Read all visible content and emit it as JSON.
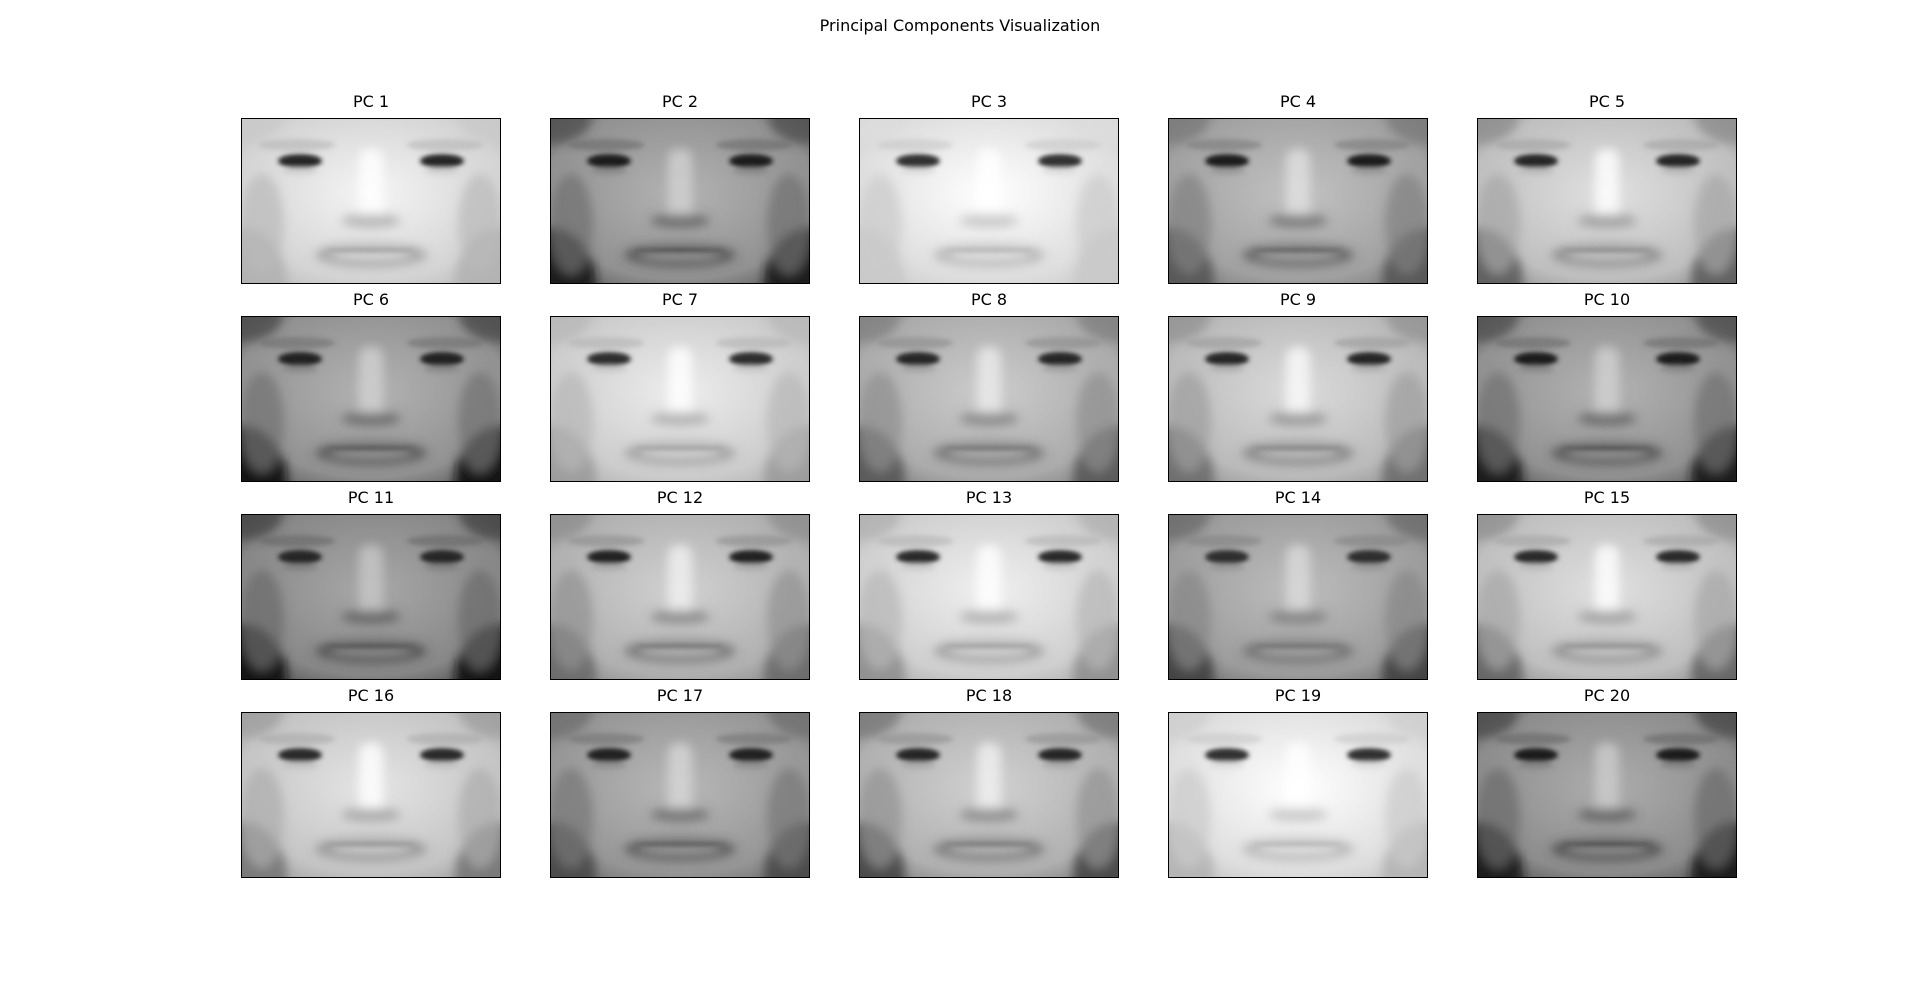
{
  "figure": {
    "title": "Principal Components Visualization"
  },
  "chart_data": {
    "type": "image-grid",
    "title": "Principal Components Visualization",
    "rows": 4,
    "cols": 5,
    "colormap": "gray",
    "panels": [
      {
        "title": "PC 1",
        "tone": 0.88,
        "contrast": 0.85,
        "dark_corners": 0.25
      },
      {
        "title": "PC 2",
        "tone": 0.62,
        "contrast": 1.0,
        "dark_corners": 0.85
      },
      {
        "title": "PC 3",
        "tone": 0.92,
        "contrast": 0.7,
        "dark_corners": 0.15
      },
      {
        "title": "PC 4",
        "tone": 0.68,
        "contrast": 1.0,
        "dark_corners": 0.55
      },
      {
        "title": "PC 5",
        "tone": 0.8,
        "contrast": 0.85,
        "dark_corners": 0.7
      },
      {
        "title": "PC 6",
        "tone": 0.62,
        "contrast": 0.95,
        "dark_corners": 0.9
      },
      {
        "title": "PC 7",
        "tone": 0.85,
        "contrast": 0.75,
        "dark_corners": 0.35
      },
      {
        "title": "PC 8",
        "tone": 0.72,
        "contrast": 0.9,
        "dark_corners": 0.6
      },
      {
        "title": "PC 9",
        "tone": 0.78,
        "contrast": 0.9,
        "dark_corners": 0.55
      },
      {
        "title": "PC 10",
        "tone": 0.62,
        "contrast": 1.0,
        "dark_corners": 0.85
      },
      {
        "title": "PC 11",
        "tone": 0.58,
        "contrast": 0.9,
        "dark_corners": 0.85
      },
      {
        "title": "PC 12",
        "tone": 0.74,
        "contrast": 0.95,
        "dark_corners": 0.5
      },
      {
        "title": "PC 13",
        "tone": 0.86,
        "contrast": 0.8,
        "dark_corners": 0.45
      },
      {
        "title": "PC 14",
        "tone": 0.66,
        "contrast": 0.75,
        "dark_corners": 0.65
      },
      {
        "title": "PC 15",
        "tone": 0.8,
        "contrast": 0.8,
        "dark_corners": 0.65
      },
      {
        "title": "PC 16",
        "tone": 0.82,
        "contrast": 0.8,
        "dark_corners": 0.55
      },
      {
        "title": "PC 17",
        "tone": 0.64,
        "contrast": 0.95,
        "dark_corners": 0.55
      },
      {
        "title": "PC 18",
        "tone": 0.74,
        "contrast": 0.9,
        "dark_corners": 0.75
      },
      {
        "title": "PC 19",
        "tone": 0.92,
        "contrast": 0.7,
        "dark_corners": 0.3
      },
      {
        "title": "PC 20",
        "tone": 0.6,
        "contrast": 1.0,
        "dark_corners": 0.85
      }
    ]
  }
}
